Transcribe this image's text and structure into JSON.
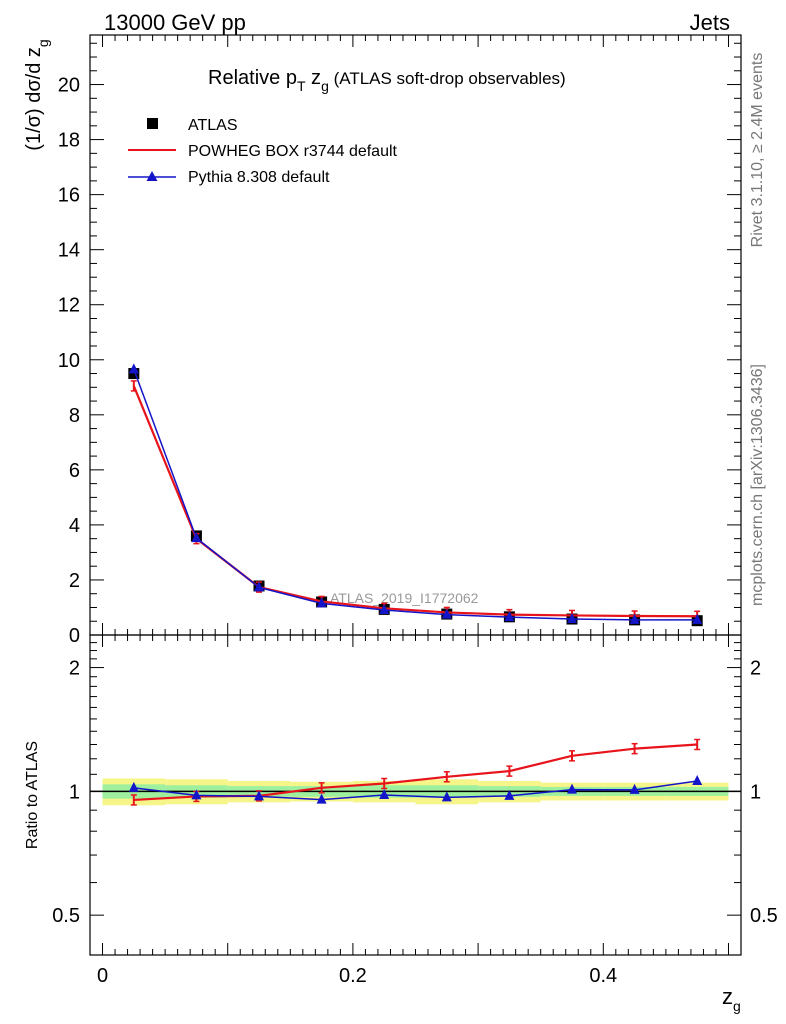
{
  "header": {
    "left": "13000 GeV pp",
    "right": "Jets"
  },
  "side": {
    "top": "Rivet 3.1.10, ≥ 2.4M events",
    "bottom": "mcplots.cern.ch [arXiv:1306.3436]"
  },
  "chart_data": [
    {
      "type": "line",
      "title_parts": {
        "a": "Relative p",
        "sub1": "T",
        "b": " z",
        "sub2": "g",
        "c": " (ATLAS soft-drop observables)"
      },
      "ylabel": "(1/σ) dσ/d z",
      "ylabel_sub": "g",
      "watermark": "ATLAS_2019_I1772062",
      "xlim": [
        -0.01,
        0.51
      ],
      "ylim": [
        0,
        21.8
      ],
      "yticks": [
        0,
        2,
        4,
        6,
        8,
        10,
        12,
        14,
        16,
        18,
        20
      ],
      "x": [
        0.025,
        0.075,
        0.125,
        0.175,
        0.225,
        0.275,
        0.325,
        0.375,
        0.425,
        0.475
      ],
      "series": [
        {
          "name": "ATLAS",
          "color": "#000000",
          "marker": "square",
          "values": [
            9.5,
            3.6,
            1.78,
            1.2,
            0.93,
            0.76,
            0.66,
            0.58,
            0.55,
            0.52
          ]
        },
        {
          "name": "POWHEG BOX r3744 default",
          "color": "#e8141c",
          "marker": "none",
          "values": [
            9.05,
            3.5,
            1.74,
            1.22,
            0.97,
            0.82,
            0.74,
            0.71,
            0.69,
            0.68
          ]
        },
        {
          "name": "Pythia 8.308 default",
          "color": "#1414c8",
          "marker": "triangle",
          "values": [
            9.65,
            3.52,
            1.73,
            1.15,
            0.91,
            0.74,
            0.65,
            0.58,
            0.55,
            0.55
          ]
        }
      ],
      "legend": [
        "ATLAS",
        "POWHEG BOX r3744 default",
        "Pythia 8.308 default"
      ]
    },
    {
      "type": "line",
      "ylabel": "Ratio to ATLAS",
      "xlabel": "z",
      "xlabel_sub": "g",
      "scale": "log",
      "ylim": [
        0.4,
        2.4
      ],
      "yticks": [
        0.5,
        1,
        2
      ],
      "xticks": [
        0,
        0.2,
        0.4
      ],
      "x": [
        0.025,
        0.075,
        0.125,
        0.175,
        0.225,
        0.275,
        0.325,
        0.375,
        0.425,
        0.475
      ],
      "band_outer": [
        0.075,
        0.07,
        0.06,
        0.055,
        0.06,
        0.07,
        0.06,
        0.05,
        0.05,
        0.05
      ],
      "band_inner": [
        0.04,
        0.035,
        0.03,
        0.03,
        0.035,
        0.035,
        0.03,
        0.025,
        0.025,
        0.025
      ],
      "series": [
        {
          "name": "POWHEG BOX r3744 default",
          "color": "#e8141c",
          "marker": "none",
          "values": [
            0.953,
            0.972,
            0.975,
            1.02,
            1.045,
            1.085,
            1.12,
            1.22,
            1.27,
            1.3
          ]
        },
        {
          "name": "Pythia 8.308 default",
          "color": "#1414c8",
          "marker": "triangle",
          "values": [
            1.02,
            0.978,
            0.972,
            0.955,
            0.98,
            0.967,
            0.975,
            1.01,
            1.008,
            1.06
          ]
        }
      ]
    }
  ]
}
